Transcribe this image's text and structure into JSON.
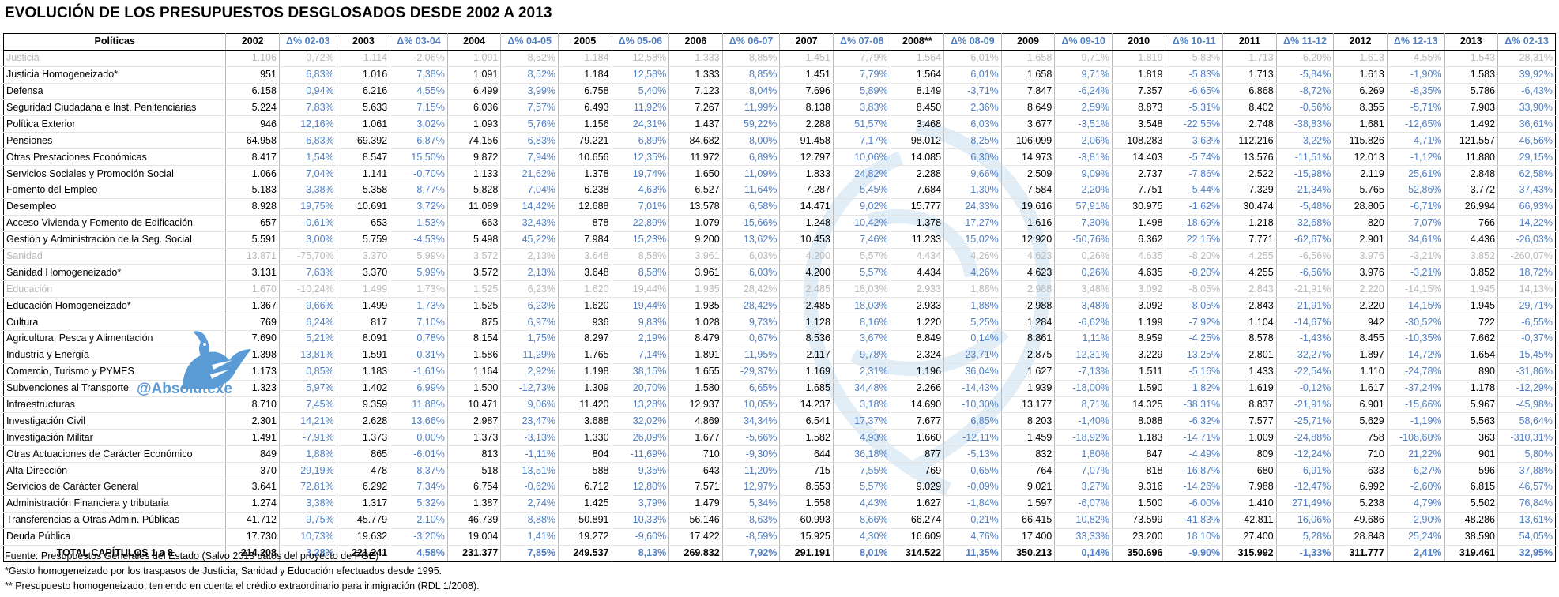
{
  "title": "EVOLUCIÓN DE LOS PRESUPUESTOS DESGLOSADOS DESDE 2002 A 2013",
  "watermark_handle": "@Absolutexe",
  "colors": {
    "pct_blue": "#4f7ec2",
    "grey_row": "#b9b9b9",
    "watermark_blue": "#5b9bd5"
  },
  "headers": [
    "Políticas",
    "2002",
    "Δ% 02-03",
    "2003",
    "Δ% 03-04",
    "2004",
    "Δ% 04-05",
    "2005",
    "Δ% 05-06",
    "2006",
    "Δ% 06-07",
    "2007",
    "Δ% 07-08",
    "2008**",
    "Δ% 08-09",
    "2009",
    "Δ% 09-10",
    "2010",
    "Δ% 10-11",
    "2011",
    "Δ% 11-12",
    "2012",
    "Δ% 12-13",
    "2013",
    "Δ% 02-13"
  ],
  "rows": [
    {
      "grey": true,
      "cells": [
        "Justicia",
        "1.106",
        "0,72%",
        "1.114",
        "-2,06%",
        "1.091",
        "8,52%",
        "1.184",
        "12,58%",
        "1.333",
        "8,85%",
        "1.451",
        "7,79%",
        "1.564",
        "6,01%",
        "1.658",
        "9,71%",
        "1.819",
        "-5,83%",
        "1.713",
        "-6,20%",
        "1.613",
        "-4,55%",
        "1.543",
        "28,31%"
      ]
    },
    {
      "grey": false,
      "cells": [
        "Justicia Homogeneizado*",
        "951",
        "6,83%",
        "1.016",
        "7,38%",
        "1.091",
        "8,52%",
        "1.184",
        "12,58%",
        "1.333",
        "8,85%",
        "1.451",
        "7,79%",
        "1.564",
        "6,01%",
        "1.658",
        "9,71%",
        "1.819",
        "-5,83%",
        "1.713",
        "-5,84%",
        "1.613",
        "-1,90%",
        "1.583",
        "39,92%"
      ]
    },
    {
      "grey": false,
      "cells": [
        "Defensa",
        "6.158",
        "0,94%",
        "6.216",
        "4,55%",
        "6.499",
        "3,99%",
        "6.758",
        "5,40%",
        "7.123",
        "8,04%",
        "7.696",
        "5,89%",
        "8.149",
        "-3,71%",
        "7.847",
        "-6,24%",
        "7.357",
        "-6,65%",
        "6.868",
        "-8,72%",
        "6.269",
        "-8,35%",
        "5.786",
        "-6,43%"
      ]
    },
    {
      "grey": false,
      "cells": [
        "Seguridad Ciudadana e Inst. Penitenciarias",
        "5.224",
        "7,83%",
        "5.633",
        "7,15%",
        "6.036",
        "7,57%",
        "6.493",
        "11,92%",
        "7.267",
        "11,99%",
        "8.138",
        "3,83%",
        "8.450",
        "2,36%",
        "8.649",
        "2,59%",
        "8.873",
        "-5,31%",
        "8.402",
        "-0,56%",
        "8.355",
        "-5,71%",
        "7.903",
        "33,90%"
      ]
    },
    {
      "grey": false,
      "cells": [
        "Política Exterior",
        "946",
        "12,16%",
        "1.061",
        "3,02%",
        "1.093",
        "5,76%",
        "1.156",
        "24,31%",
        "1.437",
        "59,22%",
        "2.288",
        "51,57%",
        "3.468",
        "6,03%",
        "3.677",
        "-3,51%",
        "3.548",
        "-22,55%",
        "2.748",
        "-38,83%",
        "1.681",
        "-12,65%",
        "1.492",
        "36,61%"
      ]
    },
    {
      "grey": false,
      "cells": [
        "Pensiones",
        "64.958",
        "6,83%",
        "69.392",
        "6,87%",
        "74.156",
        "6,83%",
        "79.221",
        "6,89%",
        "84.682",
        "8,00%",
        "91.458",
        "7,17%",
        "98.012",
        "8,25%",
        "106.099",
        "2,06%",
        "108.283",
        "3,63%",
        "112.216",
        "3,22%",
        "115.826",
        "4,71%",
        "121.557",
        "46,56%"
      ]
    },
    {
      "grey": false,
      "cells": [
        "Otras Prestaciones Económicas",
        "8.417",
        "1,54%",
        "8.547",
        "15,50%",
        "9.872",
        "7,94%",
        "10.656",
        "12,35%",
        "11.972",
        "6,89%",
        "12.797",
        "10,06%",
        "14.085",
        "6,30%",
        "14.973",
        "-3,81%",
        "14.403",
        "-5,74%",
        "13.576",
        "-11,51%",
        "12.013",
        "-1,12%",
        "11.880",
        "29,15%"
      ]
    },
    {
      "grey": false,
      "cells": [
        "Servicios Sociales y Promoción Social",
        "1.066",
        "7,04%",
        "1.141",
        "-0,70%",
        "1.133",
        "21,62%",
        "1.378",
        "19,74%",
        "1.650",
        "11,09%",
        "1.833",
        "24,82%",
        "2.288",
        "9,66%",
        "2.509",
        "9,09%",
        "2.737",
        "-7,86%",
        "2.522",
        "-15,98%",
        "2.119",
        "25,61%",
        "2.848",
        "62,58%"
      ]
    },
    {
      "grey": false,
      "cells": [
        "Fomento del Empleo",
        "5.183",
        "3,38%",
        "5.358",
        "8,77%",
        "5.828",
        "7,04%",
        "6.238",
        "4,63%",
        "6.527",
        "11,64%",
        "7.287",
        "5,45%",
        "7.684",
        "-1,30%",
        "7.584",
        "2,20%",
        "7.751",
        "-5,44%",
        "7.329",
        "-21,34%",
        "5.765",
        "-52,86%",
        "3.772",
        "-37,43%"
      ]
    },
    {
      "grey": false,
      "cells": [
        "Desempleo",
        "8.928",
        "19,75%",
        "10.691",
        "3,72%",
        "11.089",
        "14,42%",
        "12.688",
        "7,01%",
        "13.578",
        "6,58%",
        "14.471",
        "9,02%",
        "15.777",
        "24,33%",
        "19.616",
        "57,91%",
        "30.975",
        "-1,62%",
        "30.474",
        "-5,48%",
        "28.805",
        "-6,71%",
        "26.994",
        "66,93%"
      ]
    },
    {
      "grey": false,
      "cells": [
        "Acceso Vivienda y Fomento de Edificación",
        "657",
        "-0,61%",
        "653",
        "1,53%",
        "663",
        "32,43%",
        "878",
        "22,89%",
        "1.079",
        "15,66%",
        "1.248",
        "10,42%",
        "1.378",
        "17,27%",
        "1.616",
        "-7,30%",
        "1.498",
        "-18,69%",
        "1.218",
        "-32,68%",
        "820",
        "-7,07%",
        "766",
        "14,22%"
      ]
    },
    {
      "grey": false,
      "cells": [
        "Gestión y Administración de la Seg. Social",
        "5.591",
        "3,00%",
        "5.759",
        "-4,53%",
        "5.498",
        "45,22%",
        "7.984",
        "15,23%",
        "9.200",
        "13,62%",
        "10.453",
        "7,46%",
        "11.233",
        "15,02%",
        "12.920",
        "-50,76%",
        "6.362",
        "22,15%",
        "7.771",
        "-62,67%",
        "2.901",
        "34,61%",
        "4.436",
        "-26,03%"
      ]
    },
    {
      "grey": true,
      "cells": [
        "Sanidad",
        "13.871",
        "-75,70%",
        "3.370",
        "5,99%",
        "3.572",
        "2,13%",
        "3.648",
        "8,58%",
        "3.961",
        "6,03%",
        "4.200",
        "5,57%",
        "4.434",
        "4,26%",
        "4.623",
        "0,26%",
        "4.635",
        "-8,20%",
        "4.255",
        "-6,56%",
        "3.976",
        "-3,21%",
        "3.852",
        "-260,07%"
      ]
    },
    {
      "grey": false,
      "cells": [
        "Sanidad Homogeneizado*",
        "3.131",
        "7,63%",
        "3.370",
        "5,99%",
        "3.572",
        "2,13%",
        "3.648",
        "8,58%",
        "3.961",
        "6,03%",
        "4.200",
        "5,57%",
        "4.434",
        "4,26%",
        "4.623",
        "0,26%",
        "4.635",
        "-8,20%",
        "4.255",
        "-6,56%",
        "3.976",
        "-3,21%",
        "3.852",
        "18,72%"
      ]
    },
    {
      "grey": true,
      "cells": [
        "Educación",
        "1.670",
        "-10,24%",
        "1.499",
        "1,73%",
        "1.525",
        "6,23%",
        "1.620",
        "19,44%",
        "1.935",
        "28,42%",
        "2.485",
        "18,03%",
        "2.933",
        "1,88%",
        "2.988",
        "3,48%",
        "3.092",
        "-8,05%",
        "2.843",
        "-21,91%",
        "2.220",
        "-14,15%",
        "1.945",
        "14,13%"
      ]
    },
    {
      "grey": false,
      "cells": [
        "Educación Homogeneizado*",
        "1.367",
        "9,66%",
        "1.499",
        "1,73%",
        "1.525",
        "6,23%",
        "1.620",
        "19,44%",
        "1.935",
        "28,42%",
        "2.485",
        "18,03%",
        "2.933",
        "1,88%",
        "2.988",
        "3,48%",
        "3.092",
        "-8,05%",
        "2.843",
        "-21,91%",
        "2.220",
        "-14,15%",
        "1.945",
        "29,71%"
      ]
    },
    {
      "grey": false,
      "cells": [
        "Cultura",
        "769",
        "6,24%",
        "817",
        "7,10%",
        "875",
        "6,97%",
        "936",
        "9,83%",
        "1.028",
        "9,73%",
        "1.128",
        "8,16%",
        "1.220",
        "5,25%",
        "1.284",
        "-6,62%",
        "1.199",
        "-7,92%",
        "1.104",
        "-14,67%",
        "942",
        "-30,52%",
        "722",
        "-6,55%"
      ]
    },
    {
      "grey": false,
      "cells": [
        "Agricultura, Pesca y Alimentación",
        "7.690",
        "5,21%",
        "8.091",
        "0,78%",
        "8.154",
        "1,75%",
        "8.297",
        "2,19%",
        "8.479",
        "0,67%",
        "8.536",
        "3,67%",
        "8.849",
        "0,14%",
        "8.861",
        "1,11%",
        "8.959",
        "-4,25%",
        "8.578",
        "-1,43%",
        "8.455",
        "-10,35%",
        "7.662",
        "-0,37%"
      ]
    },
    {
      "grey": false,
      "cells": [
        "Industria y Energía",
        "1.398",
        "13,81%",
        "1.591",
        "-0,31%",
        "1.586",
        "11,29%",
        "1.765",
        "7,14%",
        "1.891",
        "11,95%",
        "2.117",
        "9,78%",
        "2.324",
        "23,71%",
        "2.875",
        "12,31%",
        "3.229",
        "-13,25%",
        "2.801",
        "-32,27%",
        "1.897",
        "-14,72%",
        "1.654",
        "15,45%"
      ]
    },
    {
      "grey": false,
      "cells": [
        "Comercio, Turismo y PYMES",
        "1.173",
        "0,85%",
        "1.183",
        "-1,61%",
        "1.164",
        "2,92%",
        "1.198",
        "38,15%",
        "1.655",
        "-29,37%",
        "1.169",
        "2,31%",
        "1.196",
        "36,04%",
        "1.627",
        "-7,13%",
        "1.511",
        "-5,16%",
        "1.433",
        "-22,54%",
        "1.110",
        "-24,78%",
        "890",
        "-31,86%"
      ]
    },
    {
      "grey": false,
      "cells": [
        "Subvenciones al Transporte",
        "1.323",
        "5,97%",
        "1.402",
        "6,99%",
        "1.500",
        "-12,73%",
        "1.309",
        "20,70%",
        "1.580",
        "6,65%",
        "1.685",
        "34,48%",
        "2.266",
        "-14,43%",
        "1.939",
        "-18,00%",
        "1.590",
        "1,82%",
        "1.619",
        "-0,12%",
        "1.617",
        "-37,24%",
        "1.178",
        "-12,29%"
      ]
    },
    {
      "grey": false,
      "cells": [
        "Infraestructuras",
        "8.710",
        "7,45%",
        "9.359",
        "11,88%",
        "10.471",
        "9,06%",
        "11.420",
        "13,28%",
        "12.937",
        "10,05%",
        "14.237",
        "3,18%",
        "14.690",
        "-10,30%",
        "13.177",
        "8,71%",
        "14.325",
        "-38,31%",
        "8.837",
        "-21,91%",
        "6.901",
        "-15,66%",
        "5.967",
        "-45,98%"
      ]
    },
    {
      "grey": false,
      "cells": [
        "Investigación Civil",
        "2.301",
        "14,21%",
        "2.628",
        "13,66%",
        "2.987",
        "23,47%",
        "3.688",
        "32,02%",
        "4.869",
        "34,34%",
        "6.541",
        "17,37%",
        "7.677",
        "6,85%",
        "8.203",
        "-1,40%",
        "8.088",
        "-6,32%",
        "7.577",
        "-25,71%",
        "5.629",
        "-1,19%",
        "5.563",
        "58,64%"
      ]
    },
    {
      "grey": false,
      "cells": [
        "Investigación Militar",
        "1.491",
        "-7,91%",
        "1.373",
        "0,00%",
        "1.373",
        "-3,13%",
        "1.330",
        "26,09%",
        "1.677",
        "-5,66%",
        "1.582",
        "4,93%",
        "1.660",
        "-12,11%",
        "1.459",
        "-18,92%",
        "1.183",
        "-14,71%",
        "1.009",
        "-24,88%",
        "758",
        "-108,60%",
        "363",
        "-310,31%"
      ]
    },
    {
      "grey": false,
      "cells": [
        "Otras Actuaciones de Carácter Económico",
        "849",
        "1,88%",
        "865",
        "-6,01%",
        "813",
        "-1,11%",
        "804",
        "-11,69%",
        "710",
        "-9,30%",
        "644",
        "36,18%",
        "877",
        "-5,13%",
        "832",
        "1,80%",
        "847",
        "-4,49%",
        "809",
        "-12,24%",
        "710",
        "21,22%",
        "901",
        "5,80%"
      ]
    },
    {
      "grey": false,
      "cells": [
        "Alta Dirección",
        "370",
        "29,19%",
        "478",
        "8,37%",
        "518",
        "13,51%",
        "588",
        "9,35%",
        "643",
        "11,20%",
        "715",
        "7,55%",
        "769",
        "-0,65%",
        "764",
        "7,07%",
        "818",
        "-16,87%",
        "680",
        "-6,91%",
        "633",
        "-6,27%",
        "596",
        "37,88%"
      ]
    },
    {
      "grey": false,
      "cells": [
        "Servicios de Carácter General",
        "3.641",
        "72,81%",
        "6.292",
        "7,34%",
        "6.754",
        "-0,62%",
        "6.712",
        "12,80%",
        "7.571",
        "12,97%",
        "8.553",
        "5,57%",
        "9.029",
        "-0,09%",
        "9.021",
        "3,27%",
        "9.316",
        "-14,26%",
        "7.988",
        "-12,47%",
        "6.992",
        "-2,60%",
        "6.815",
        "46,57%"
      ]
    },
    {
      "grey": false,
      "cells": [
        "Administración Financiera y tributaria",
        "1.274",
        "3,38%",
        "1.317",
        "5,32%",
        "1.387",
        "2,74%",
        "1.425",
        "3,79%",
        "1.479",
        "5,34%",
        "1.558",
        "4,43%",
        "1.627",
        "-1,84%",
        "1.597",
        "-6,07%",
        "1.500",
        "-6,00%",
        "1.410",
        "271,49%",
        "5.238",
        "4,79%",
        "5.502",
        "76,84%"
      ]
    },
    {
      "grey": false,
      "cells": [
        "Transferencias a Otras Admin. Públicas",
        "41.712",
        "9,75%",
        "45.779",
        "2,10%",
        "46.739",
        "8,88%",
        "50.891",
        "10,33%",
        "56.146",
        "8,63%",
        "60.993",
        "8,66%",
        "66.274",
        "0,21%",
        "66.415",
        "10,82%",
        "73.599",
        "-41,83%",
        "42.811",
        "16,06%",
        "49.686",
        "-2,90%",
        "48.286",
        "13,61%"
      ]
    },
    {
      "grey": false,
      "cells": [
        "Deuda Pública",
        "17.730",
        "10,73%",
        "19.632",
        "-3,20%",
        "19.004",
        "1,41%",
        "19.272",
        "-9,60%",
        "17.422",
        "-8,59%",
        "15.925",
        "4,30%",
        "16.609",
        "4,76%",
        "17.400",
        "33,33%",
        "23.200",
        "18,10%",
        "27.400",
        "5,28%",
        "28.848",
        "25,24%",
        "38.590",
        "54,05%"
      ]
    }
  ],
  "total": [
    "TOTAL CAPÍTULOS 1 a 8",
    "214.208",
    "3,28%",
    "221.241",
    "4,58%",
    "231.377",
    "7,85%",
    "249.537",
    "8,13%",
    "269.832",
    "7,92%",
    "291.191",
    "8,01%",
    "314.522",
    "11,35%",
    "350.213",
    "0,14%",
    "350.696",
    "-9,90%",
    "315.992",
    "-1,33%",
    "311.777",
    "2,41%",
    "319.461",
    "32,95%"
  ],
  "notes": [
    "Fuente: Presupuestos Generales del Estado (Salvo 2013 datos del proyecto de PGE)",
    "*Gasto homogeneizado por los traspasos de Justicia, Sanidad y Educación efectuados desde 1995.",
    "** Presupuesto homogeneizado, teniendo en cuenta el crédito extraordinario para inmigración (RDL 1/2008)."
  ]
}
